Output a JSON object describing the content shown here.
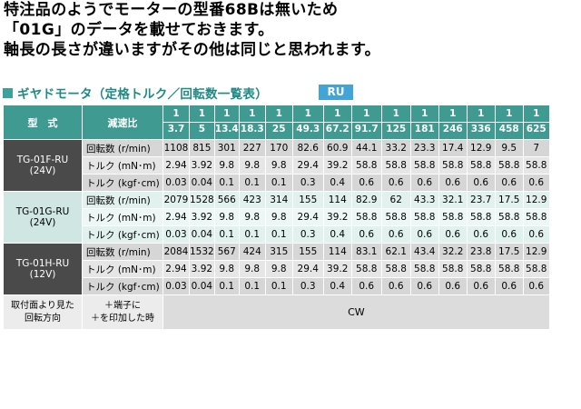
{
  "note": {
    "lines": [
      "特注品のようでモーターの型番68Bは無いため",
      "「01G」のデータを載せておきます。",
      "軸長の長さが違いますがその他は同じと思われます。"
    ]
  },
  "table_title": "ギヤドモータ（定格トルク／回転数一覧表）",
  "badge": "RU",
  "header": {
    "model_label": "型　式",
    "ratio_label": "減速比",
    "ratios": [
      {
        "num": "1",
        "den": "3.7"
      },
      {
        "num": "1",
        "den": "5"
      },
      {
        "num": "1",
        "den": "13.4"
      },
      {
        "num": "1",
        "den": "18.3"
      },
      {
        "num": "1",
        "den": "25"
      },
      {
        "num": "1",
        "den": "49.3"
      },
      {
        "num": "1",
        "den": "67.2"
      },
      {
        "num": "1",
        "den": "91.7"
      },
      {
        "num": "1",
        "den": "125"
      },
      {
        "num": "1",
        "den": "181"
      },
      {
        "num": "1",
        "den": "246"
      },
      {
        "num": "1",
        "den": "336"
      },
      {
        "num": "1",
        "den": "458"
      },
      {
        "num": "1",
        "den": "625"
      }
    ]
  },
  "groups": [
    {
      "model": "TG-01F-RU",
      "voltage": "(24V)",
      "rows": [
        {
          "label": "回転数 (r/min)",
          "values": [
            "1108",
            "815",
            "301",
            "227",
            "170",
            "82.6",
            "60.9",
            "44.1",
            "33.2",
            "23.3",
            "17.4",
            "12.9",
            "9.5",
            "7"
          ]
        },
        {
          "label": "トルク (mN･m)",
          "values": [
            "2.94",
            "3.92",
            "9.8",
            "9.8",
            "9.8",
            "29.4",
            "39.2",
            "58.8",
            "58.8",
            "58.8",
            "58.8",
            "58.8",
            "58.8",
            "58.8"
          ]
        },
        {
          "label": "トルク (kgf･cm)",
          "values": [
            "0.03",
            "0.04",
            "0.1",
            "0.1",
            "0.1",
            "0.3",
            "0.4",
            "0.6",
            "0.6",
            "0.6",
            "0.6",
            "0.6",
            "0.6",
            "0.6"
          ]
        }
      ]
    },
    {
      "model": "TG-01G-RU",
      "voltage": "(24V)",
      "rows": [
        {
          "label": "回転数 (r/min)",
          "values": [
            "2079",
            "1528",
            "566",
            "423",
            "314",
            "155",
            "114",
            "82.9",
            "62",
            "43.3",
            "32.1",
            "23.7",
            "17.5",
            "12.9"
          ]
        },
        {
          "label": "トルク (mN･m)",
          "values": [
            "2.94",
            "3.92",
            "9.8",
            "9.8",
            "9.8",
            "29.4",
            "39.2",
            "58.8",
            "58.8",
            "58.8",
            "58.8",
            "58.8",
            "58.8",
            "58.8"
          ]
        },
        {
          "label": "トルク (kgf･cm)",
          "values": [
            "0.03",
            "0.04",
            "0.1",
            "0.1",
            "0.1",
            "0.3",
            "0.4",
            "0.6",
            "0.6",
            "0.6",
            "0.6",
            "0.6",
            "0.6",
            "0.6"
          ]
        }
      ]
    },
    {
      "model": "TG-01H-RU",
      "voltage": "(12V)",
      "rows": [
        {
          "label": "回転数 (r/min)",
          "values": [
            "2084",
            "1532",
            "567",
            "424",
            "315",
            "155",
            "114",
            "83.1",
            "62.1",
            "43.4",
            "32.2",
            "23.8",
            "17.5",
            "12.9"
          ]
        },
        {
          "label": "トルク (mN･m)",
          "values": [
            "2.94",
            "3.92",
            "9.8",
            "9.8",
            "9.8",
            "29.4",
            "39.2",
            "58.8",
            "58.8",
            "58.8",
            "58.8",
            "58.8",
            "58.8",
            "58.8"
          ]
        },
        {
          "label": "トルク (kgf･cm)",
          "values": [
            "0.03",
            "0.04",
            "0.1",
            "0.1",
            "0.1",
            "0.3",
            "0.4",
            "0.6",
            "0.6",
            "0.6",
            "0.6",
            "0.6",
            "0.6",
            "0.6"
          ]
        }
      ]
    }
  ],
  "rotation": {
    "label_line1": "取付面より見た",
    "label_line2": "回転方向",
    "cond_line1": "＋端子に",
    "cond_line2": "＋を印加した時",
    "value": "CW"
  },
  "colors": {
    "header_teal": "#3f9a92",
    "title_teal": "#1f8a84",
    "badge_blue": "#43a4d6",
    "dark_model_cell": "#4a4a4a"
  }
}
